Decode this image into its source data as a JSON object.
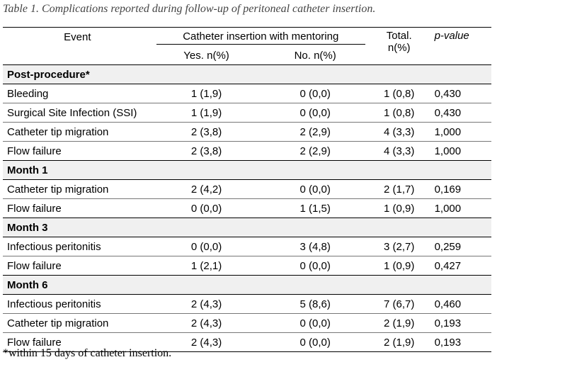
{
  "caption": "Table 1. Complications reported during follow-up of peritoneal catheter insertion.",
  "header": {
    "event": "Event",
    "group": "Catheter insertion with mentoring",
    "yes": "Yes. n(%)",
    "no": "No. n(%)",
    "total_line1": "Total.",
    "total_line2": "n(%)",
    "pvalue": "p-value"
  },
  "sections": [
    {
      "title": "Post-procedure*",
      "rows": [
        {
          "event": "Bleeding",
          "yes": "1 (1,9)",
          "no": "0 (0,0)",
          "total": "1 (0,8)",
          "p": "0,430"
        },
        {
          "event": "Surgical Site Infection (SSI)",
          "yes": "1 (1,9)",
          "no": "0 (0,0)",
          "total": "1 (0,8)",
          "p": "0,430"
        },
        {
          "event": "Catheter tip migration",
          "yes": "2 (3,8)",
          "no": "2 (2,9)",
          "total": "4 (3,3)",
          "p": "1,000"
        },
        {
          "event": "Flow failure",
          "yes": "2 (3,8)",
          "no": "2 (2,9)",
          "total": "4 (3,3)",
          "p": "1,000"
        }
      ]
    },
    {
      "title": "Month 1",
      "rows": [
        {
          "event": "Catheter tip migration",
          "yes": "2 (4,2)",
          "no": "0 (0,0)",
          "total": "2 (1,7)",
          "p": "0,169"
        },
        {
          "event": "Flow failure",
          "yes": "0 (0,0)",
          "no": "1 (1,5)",
          "total": "1 (0,9)",
          "p": "1,000"
        }
      ]
    },
    {
      "title": "Month 3",
      "rows": [
        {
          "event": "Infectious peritonitis",
          "yes": "0 (0,0)",
          "no": "3 (4,8)",
          "total": "3 (2,7)",
          "p": "0,259"
        },
        {
          "event": "Flow failure",
          "yes": "1 (2,1)",
          "no": "0 (0,0)",
          "total": "1 (0,9)",
          "p": "0,427"
        }
      ]
    },
    {
      "title": "Month 6",
      "rows": [
        {
          "event": "Infectious peritonitis",
          "yes": "2 (4,3)",
          "no": "5 (8,6)",
          "total": "7 (6,7)",
          "p": "0,460"
        },
        {
          "event": "Catheter tip migration",
          "yes": "2 (4,3)",
          "no": "0 (0,0)",
          "total": "2 (1,9)",
          "p": "0,193"
        },
        {
          "event": "Flow failure",
          "yes": "2 (4,3)",
          "no": "0 (0,0)",
          "total": "2 (1,9)",
          "p": "0,193"
        }
      ]
    }
  ],
  "footnote": "*within 15 days of catheter insertion."
}
